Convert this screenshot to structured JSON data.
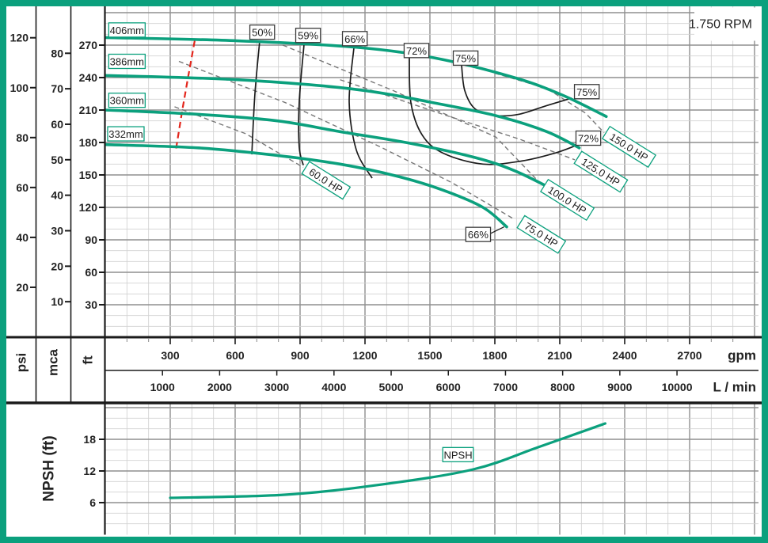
{
  "rpm_label": "1.750 RPM",
  "colors": {
    "teal": "#0ba07d",
    "red_dash": "#e3261c",
    "power_dash": "#787878",
    "black_curve": "#1c1c1c",
    "grid_major": "#8f8f8f",
    "grid_minor": "#d2d2d2",
    "axis_line": "#1b1b1b",
    "text": "#222222"
  },
  "axes": {
    "gpm": {
      "unit": "gpm",
      "ticks": [
        300,
        600,
        900,
        1200,
        1500,
        1800,
        2100,
        2400,
        2700
      ]
    },
    "lmin": {
      "unit": "L / min",
      "ticks": [
        1000,
        2000,
        3000,
        4000,
        5000,
        6000,
        7000,
        8000,
        9000,
        10000
      ]
    },
    "ft": {
      "unit": "ft",
      "ticks": [
        30,
        60,
        90,
        120,
        150,
        180,
        210,
        240,
        270
      ]
    },
    "mca": {
      "unit": "mca",
      "ticks": [
        10,
        20,
        30,
        40,
        50,
        60,
        70,
        80
      ]
    },
    "psi": {
      "unit": "psi",
      "ticks": [
        20,
        40,
        60,
        80,
        100,
        120
      ]
    },
    "npsh": {
      "unit": "NPSH (ft)",
      "ticks": [
        6,
        12,
        18
      ]
    }
  },
  "chart_data": [
    {
      "type": "line",
      "title": "Pump head vs flow",
      "xlabel": "gpm",
      "ylabel": "ft",
      "xlim": [
        0,
        3018
      ],
      "ylim": [
        0,
        306
      ],
      "grid": "on",
      "impeller_series": [
        {
          "name": "406mm",
          "points": [
            [
              0,
              277
            ],
            [
              610,
              274
            ],
            [
              1160,
              268
            ],
            [
              1525,
              258
            ],
            [
              1890,
              240
            ],
            [
              2110,
              224
            ],
            [
              2315,
              204
            ]
          ]
        },
        {
          "name": "386mm",
          "points": [
            [
              0,
              242
            ],
            [
              610,
              238
            ],
            [
              1160,
              229
            ],
            [
              1560,
              215
            ],
            [
              1820,
              204
            ],
            [
              2040,
              190
            ],
            [
              2190,
              175
            ]
          ]
        },
        {
          "name": "360mm",
          "points": [
            [
              0,
              210
            ],
            [
              430,
              206
            ],
            [
              795,
              200
            ],
            [
              1085,
              190
            ],
            [
              1415,
              179
            ],
            [
              1710,
              166
            ],
            [
              1890,
              154
            ],
            [
              2065,
              137
            ]
          ]
        },
        {
          "name": "332mm",
          "points": [
            [
              0,
              178
            ],
            [
              430,
              175
            ],
            [
              795,
              168
            ],
            [
              1085,
              160
            ],
            [
              1345,
              149
            ],
            [
              1560,
              136
            ],
            [
              1745,
              120
            ],
            [
              1855,
              102
            ]
          ]
        }
      ],
      "efficiency_series": [
        {
          "name": "50%",
          "points": [
            [
              713,
              273
            ],
            [
              691,
              224
            ],
            [
              677,
              169
            ]
          ]
        },
        {
          "name": "59%",
          "points": [
            [
              918,
              270
            ],
            [
              896,
              217
            ],
            [
              896,
              176
            ],
            [
              915,
              159
            ]
          ]
        },
        {
          "name": "66%",
          "points": [
            [
              1149,
              268
            ],
            [
              1127,
              217
            ],
            [
              1160,
              173
            ],
            [
              1233,
              147
            ]
          ]
        },
        {
          "name": "72%",
          "points": [
            [
              1405,
              260
            ],
            [
              1412,
              217
            ],
            [
              1464,
              187
            ],
            [
              1562,
              170
            ],
            [
              1745,
              160
            ],
            [
              1928,
              163
            ],
            [
              2075,
              170
            ],
            [
              2173,
              177
            ]
          ]
        },
        {
          "name": "75%",
          "points": [
            [
              1646,
              252
            ],
            [
              1661,
              228
            ],
            [
              1709,
              211
            ],
            [
              1800,
              205
            ],
            [
              1910,
              206
            ],
            [
              2038,
              214
            ],
            [
              2155,
              221
            ]
          ]
        }
      ],
      "power_series": [
        {
          "name": "60.0 HP",
          "points": [
            [
              320,
              213
            ],
            [
              650,
              188
            ],
            [
              915,
              157
            ]
          ]
        },
        {
          "name": "75.0 HP",
          "points": [
            [
              340,
              255
            ],
            [
              830,
              217
            ],
            [
              1270,
              176
            ],
            [
              1600,
              143
            ],
            [
              1890,
              109
            ]
          ]
        },
        {
          "name": "100.0 HP",
          "points": [
            [
              820,
              270
            ],
            [
              1330,
              228
            ],
            [
              1805,
              185
            ],
            [
              2030,
              138
            ]
          ]
        },
        {
          "name": "125.0 HP",
          "points": [
            [
              1085,
              238
            ],
            [
              1560,
              206
            ],
            [
              1915,
              183
            ],
            [
              2170,
              164
            ]
          ]
        },
        {
          "name": "150.0 HP",
          "points": [
            [
              1800,
              244
            ],
            [
              2040,
              230
            ],
            [
              2220,
              207
            ],
            [
              2305,
              189
            ]
          ]
        }
      ],
      "min_flow_line": [
        [
          413,
          274
        ],
        [
          384,
          242
        ],
        [
          355,
          209
        ],
        [
          326,
          173
        ]
      ],
      "labels": [
        {
          "text": "406mm",
          "x": 100,
          "y": 284,
          "style": "teal"
        },
        {
          "text": "386mm",
          "x": 100,
          "y": 255,
          "style": "teal"
        },
        {
          "text": "360mm",
          "x": 100,
          "y": 219,
          "style": "teal"
        },
        {
          "text": "332mm",
          "x": 95,
          "y": 188,
          "style": "teal"
        },
        {
          "text": "50%",
          "x": 725,
          "y": 282,
          "style": "black"
        },
        {
          "text": "59%",
          "x": 937,
          "y": 279,
          "style": "black"
        },
        {
          "text": "66%",
          "x": 1153,
          "y": 276,
          "style": "black"
        },
        {
          "text": "72%",
          "x": 1438,
          "y": 265,
          "style": "black"
        },
        {
          "text": "75%",
          "x": 1665,
          "y": 258,
          "style": "black"
        },
        {
          "text": "75%",
          "x": 2225,
          "y": 227,
          "style": "black"
        },
        {
          "text": "72%",
          "x": 2232,
          "y": 184,
          "style": "black"
        },
        {
          "text": "66%",
          "x": 1723,
          "y": 95,
          "style": "black"
        },
        {
          "text": "60.0 HP",
          "x": 1020,
          "y": 145,
          "style": "teal",
          "rotate": 32
        },
        {
          "text": "75.0 HP",
          "x": 2015,
          "y": 95,
          "style": "teal",
          "rotate": 32
        },
        {
          "text": "100.0 HP",
          "x": 2135,
          "y": 127,
          "style": "teal",
          "rotate": 32
        },
        {
          "text": "125.0 HP",
          "x": 2290,
          "y": 153,
          "style": "teal",
          "rotate": 32
        },
        {
          "text": "150.0 HP",
          "x": 2420,
          "y": 176,
          "style": "teal",
          "rotate": 32
        }
      ],
      "leader_line": [
        [
          1771,
          95
        ],
        [
          1843,
          102
        ]
      ]
    },
    {
      "type": "line",
      "title": "NPSH vs flow",
      "xlabel": "gpm",
      "ylabel": "NPSH (ft)",
      "xlim": [
        0,
        3018
      ],
      "ylim": [
        0,
        24
      ],
      "grid": "on",
      "series": [
        {
          "name": "NPSH",
          "points": [
            [
              300,
              6.9
            ],
            [
              830,
              7.5
            ],
            [
              1270,
              9.4
            ],
            [
              1700,
              12.3
            ],
            [
              2000,
              16.5
            ],
            [
              2310,
              21.0
            ]
          ]
        }
      ],
      "labels": [
        {
          "text": "NPSH",
          "x": 1630,
          "y": 15.1,
          "style": "teal"
        }
      ]
    }
  ]
}
